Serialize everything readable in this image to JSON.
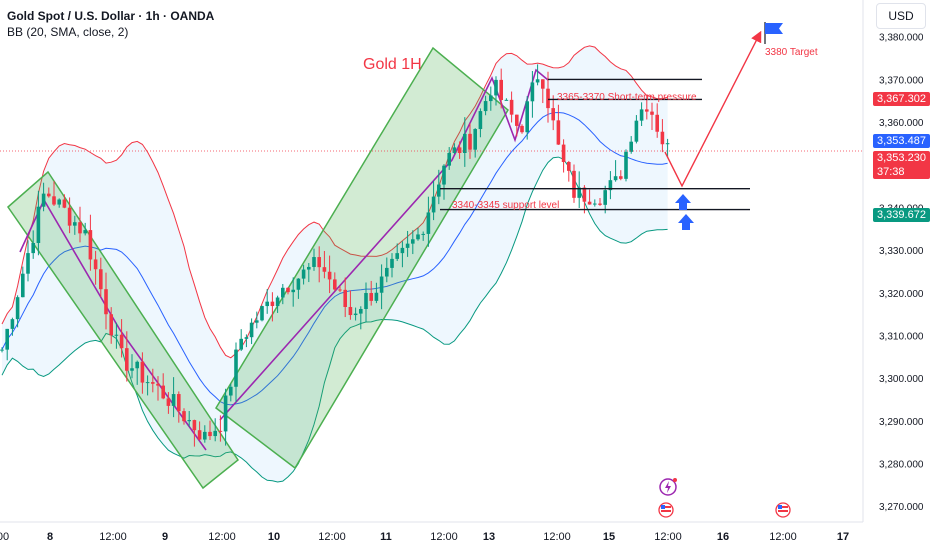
{
  "header": {
    "symbol": "Gold Spot / U.S. Dollar · 1h · OANDA",
    "indicator": "BB (20, SMA, close, 2)"
  },
  "axis": {
    "currency": "USD",
    "price_ticks": [
      "3,380.000",
      "3,370.000",
      "3,360.000",
      "3,350.000",
      "3,340.000",
      "3,330.000",
      "3,320.000",
      "3,310.000",
      "3,300.000",
      "3,290.000",
      "3,280.000",
      "3,270.000"
    ],
    "time_ticks": [
      {
        "label": "00",
        "day": false
      },
      {
        "label": "8",
        "day": true
      },
      {
        "label": "12:00",
        "day": false
      },
      {
        "label": "9",
        "day": true
      },
      {
        "label": "12:00",
        "day": false
      },
      {
        "label": "10",
        "day": true
      },
      {
        "label": "12:00",
        "day": false
      },
      {
        "label": "11",
        "day": true
      },
      {
        "label": "12:00",
        "day": false
      },
      {
        "label": "13",
        "day": true
      },
      {
        "label": "12:00",
        "day": false
      },
      {
        "label": "15",
        "day": true
      },
      {
        "label": "12:00",
        "day": false
      },
      {
        "label": "16",
        "day": true
      },
      {
        "label": "12:00",
        "day": false
      },
      {
        "label": "17",
        "day": true
      }
    ]
  },
  "price_tags": {
    "upper_band": "3,367.302",
    "middle_band": "3,353.487",
    "last_price": "3,353.230",
    "countdown": "37:38",
    "lower_band": "3,339.672"
  },
  "annotations": {
    "title": "Gold 1H",
    "resistance": "3365-3370 Short-term pressure",
    "support": "3340-3345 support level",
    "target": "3380 Target"
  },
  "colors": {
    "up": "#089981",
    "down": "#f23645",
    "upper_band": "#f23645",
    "basis": "#2962ff",
    "lower_band": "#089981",
    "band_fill": "#e3f2fd",
    "channel": "#4caf50",
    "trend": "#9c27b0",
    "arrow": "#2962ff",
    "projection": "#f23645"
  },
  "chart_data": {
    "type": "candlestick",
    "ylim": [
      3267,
      3388
    ],
    "x_labels": [
      "00",
      "8",
      "12:00",
      "9",
      "12:00",
      "10",
      "12:00",
      "11",
      "12:00",
      "13",
      "12:00",
      "15",
      "12:00",
      "16",
      "12:00",
      "17"
    ],
    "bollinger": {
      "period": 20,
      "ma": "SMA",
      "source": "close",
      "stddev": 2,
      "last_upper": 3367.302,
      "last_basis": 3353.487,
      "last_lower": 3339.672
    },
    "last_close": 3353.23,
    "levels": [
      {
        "label": "3365-3370 Short-term pressure",
        "low": 3365,
        "high": 3370
      },
      {
        "label": "3340-3345 support level",
        "low": 3340,
        "high": 3345
      }
    ],
    "target": 3380
  }
}
